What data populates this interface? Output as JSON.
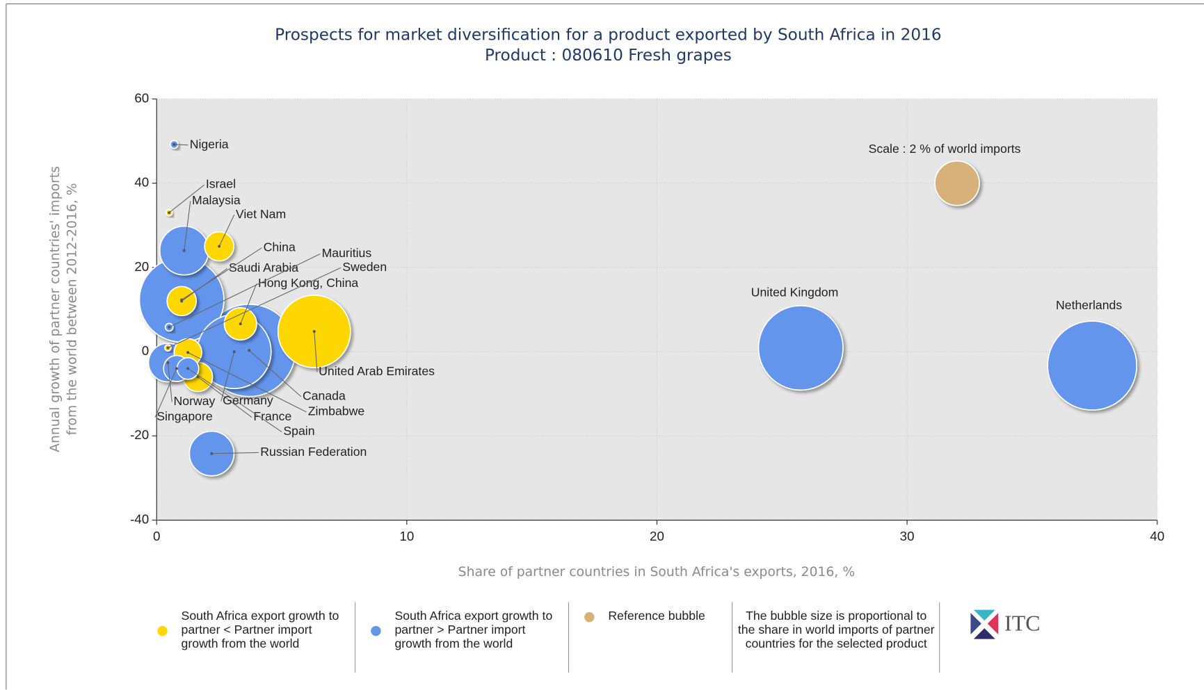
{
  "chart_data": {
    "type": "bubble",
    "title": "Prospects for market diversification for a product exported by South Africa in 2016",
    "subtitle": "Product : 080610 Fresh grapes",
    "xlabel": "Share of partner countries in South Africa's exports, 2016, %",
    "ylabel": [
      "Annual growth of partner countries' imports",
      "from the world between 2012-2016, %"
    ],
    "xlim": [
      0,
      40
    ],
    "xticks": [
      0,
      10,
      20,
      30,
      40
    ],
    "ylim": [
      -40,
      60
    ],
    "yticks": [
      -40,
      -20,
      0,
      20,
      40,
      60
    ],
    "grid": true,
    "series": [
      {
        "name": "South Africa export growth to partner < Partner import growth from the world",
        "color": "#FFD700",
        "labels": [
          "Israel",
          "Viet Nam",
          "Saudi Arabia",
          "Hong Kong, China",
          "Sweden",
          "United Arab Emirates",
          "Zimbabwe",
          "France"
        ],
        "x": [
          0.5,
          2.5,
          1.0,
          3.35,
          0.45,
          6.3,
          1.25,
          1.65
        ],
        "y": [
          33,
          25,
          12,
          6.6,
          0.9,
          4.8,
          -0.2,
          -6
        ],
        "size": [
          0.04,
          0.86,
          0.86,
          1.05,
          0.04,
          5.3,
          0.77,
          0.86
        ]
      },
      {
        "name": "South Africa export growth to partner > Partner import growth from the world",
        "color": "#6495ED",
        "labels": [
          "Nigeria",
          "Malaysia",
          "China",
          "Mauritius",
          "Germany",
          "Canada",
          "Norway",
          "Singapore",
          "Spain",
          "Russian Federation",
          "United Kingdom",
          "Netherlands"
        ],
        "x": [
          0.7,
          1.1,
          1.0,
          0.5,
          3.1,
          3.7,
          0.45,
          0.8,
          1.25,
          2.2,
          25.75,
          37.4
        ],
        "y": [
          49.2,
          24,
          12.3,
          5.8,
          0,
          0.3,
          -2.6,
          -4,
          -4,
          -24.2,
          0.9,
          -3.3
        ],
        "size": [
          0.06,
          2.4,
          7.2,
          0.06,
          5.5,
          8.6,
          1.5,
          0.69,
          0.47,
          2,
          7.2,
          8
        ]
      },
      {
        "name": "Reference bubble",
        "color": "#D8B07A",
        "labels": [
          "Scale : 2 % of world imports"
        ],
        "x": [
          32
        ],
        "y": [
          40
        ],
        "size": [
          2
        ]
      }
    ],
    "note": "The bubble size is proportional to the share in world imports of partner countries for the selected product",
    "logo": "ITC"
  }
}
